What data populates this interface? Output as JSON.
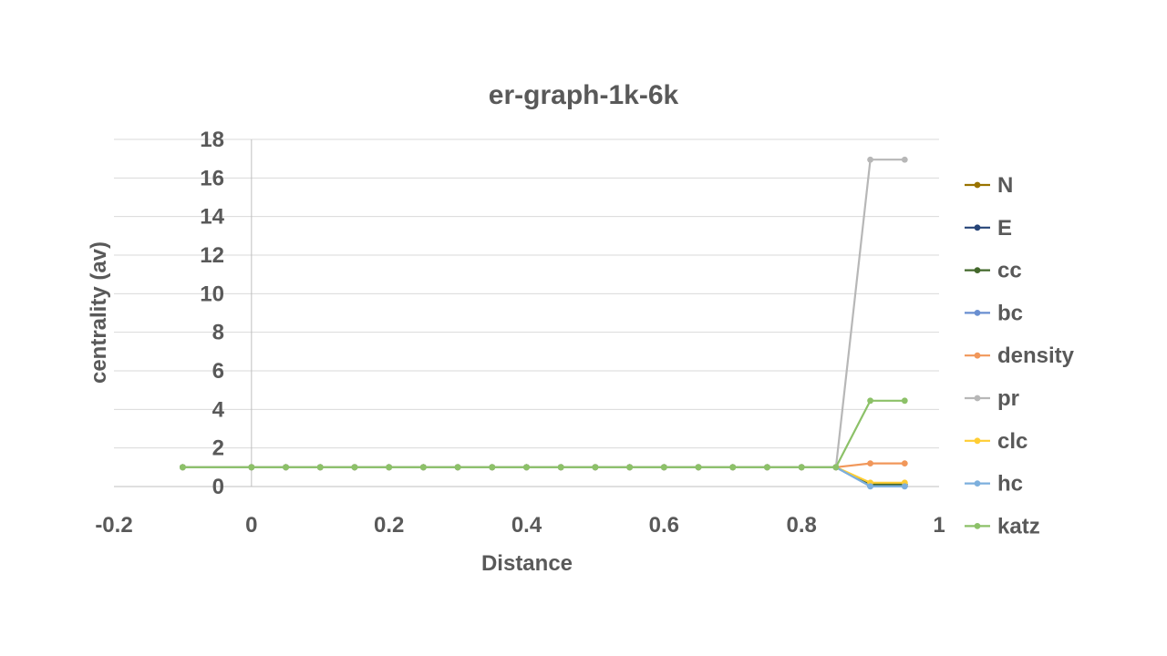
{
  "chart_data": {
    "type": "line",
    "title": "er-graph-1k-6k",
    "xlabel": "Distance",
    "ylabel": "centrality (av)",
    "xlim": [
      -0.2,
      1
    ],
    "ylim": [
      0,
      18
    ],
    "x_ticks": [
      "-0.2",
      "0",
      "0.2",
      "0.4",
      "0.6",
      "0.8",
      "1"
    ],
    "y_ticks": [
      "0",
      "2",
      "4",
      "6",
      "8",
      "10",
      "12",
      "14",
      "16",
      "18"
    ],
    "grid": true,
    "legend_position": "right",
    "x": [
      -0.1,
      0,
      0.05,
      0.1,
      0.15,
      0.2,
      0.25,
      0.3,
      0.35,
      0.4,
      0.45,
      0.5,
      0.55,
      0.6,
      0.65,
      0.7,
      0.75,
      0.8,
      0.85,
      0.9,
      0.95
    ],
    "series": [
      {
        "name": "N",
        "color": "#997300",
        "values": [
          1,
          1,
          1,
          1,
          1,
          1,
          1,
          1,
          1,
          1,
          1,
          1,
          1,
          1,
          1,
          1,
          1,
          1,
          1,
          0.05,
          0.05
        ]
      },
      {
        "name": "E",
        "color": "#264478",
        "values": [
          1,
          1,
          1,
          1,
          1,
          1,
          1,
          1,
          1,
          1,
          1,
          1,
          1,
          1,
          1,
          1,
          1,
          1,
          1,
          0.03,
          0.03
        ]
      },
      {
        "name": "cc",
        "color": "#43682B",
        "values": [
          1,
          1,
          1,
          1,
          1,
          1,
          1,
          1,
          1,
          1,
          1,
          1,
          1,
          1,
          1,
          1,
          1,
          1,
          1,
          0.12,
          0.12
        ]
      },
      {
        "name": "bc",
        "color": "#698ED0",
        "values": [
          1,
          1,
          1,
          1,
          1,
          1,
          1,
          1,
          1,
          1,
          1,
          1,
          1,
          1,
          1,
          1,
          1,
          1,
          1,
          0.02,
          0.02
        ]
      },
      {
        "name": "density",
        "color": "#F1975A",
        "values": [
          1,
          1,
          1,
          1,
          1,
          1,
          1,
          1,
          1,
          1,
          1,
          1,
          1,
          1,
          1,
          1,
          1,
          1,
          1,
          1.2,
          1.2
        ]
      },
      {
        "name": "pr",
        "color": "#B7B7B7",
        "values": [
          1,
          1,
          1,
          1,
          1,
          1,
          1,
          1,
          1,
          1,
          1,
          1,
          1,
          1,
          1,
          1,
          1,
          1,
          1,
          16.95,
          16.95
        ]
      },
      {
        "name": "clc",
        "color": "#FFCD33",
        "values": [
          1,
          1,
          1,
          1,
          1,
          1,
          1,
          1,
          1,
          1,
          1,
          1,
          1,
          1,
          1,
          1,
          1,
          1,
          1,
          0.2,
          0.2
        ]
      },
      {
        "name": "hc",
        "color": "#7CAFDD",
        "values": [
          1,
          1,
          1,
          1,
          1,
          1,
          1,
          1,
          1,
          1,
          1,
          1,
          1,
          1,
          1,
          1,
          1,
          1,
          1,
          0.01,
          0.01
        ]
      },
      {
        "name": "katz",
        "color": "#8CC168",
        "values": [
          1,
          1,
          1,
          1,
          1,
          1,
          1,
          1,
          1,
          1,
          1,
          1,
          1,
          1,
          1,
          1,
          1,
          1,
          1,
          4.45,
          4.45
        ]
      }
    ]
  }
}
